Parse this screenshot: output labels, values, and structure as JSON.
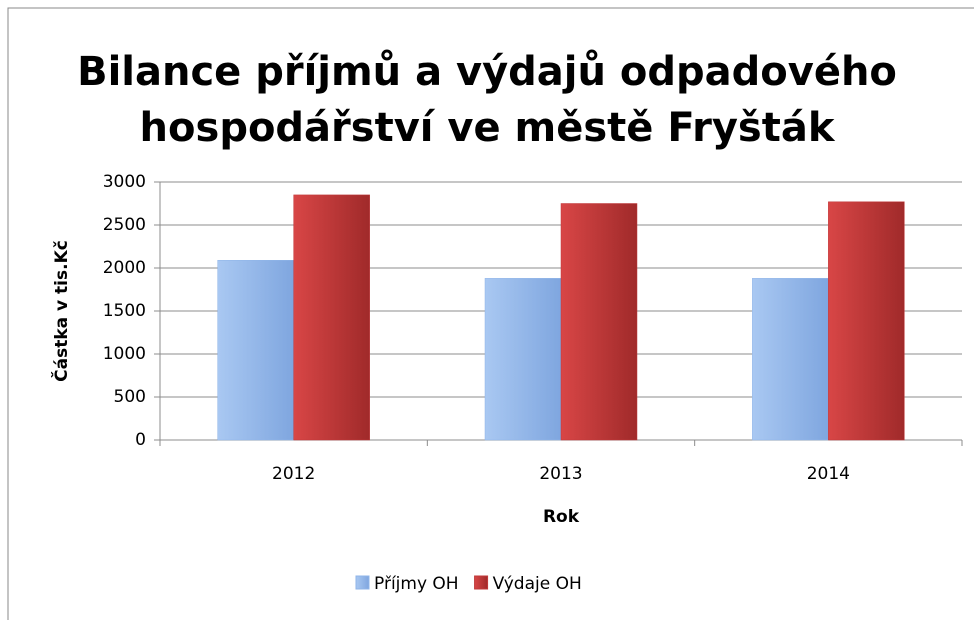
{
  "chart_data": {
    "type": "bar",
    "title": [
      "Bilance příjmů a výdajů odpadového",
      "hospodářství ve městě Fryšták"
    ],
    "y_label": "Částka v tis.Kč",
    "x_label": "Rok",
    "categories": [
      "2012",
      "2013",
      "2014"
    ],
    "series": [
      {
        "name": "Příjmy OH",
        "color": "#8fb4e8",
        "values": [
          2090,
          1880,
          1880
        ]
      },
      {
        "name": "Výdaje OH",
        "color": "#c0393a",
        "values": [
          2850,
          2750,
          2770
        ]
      }
    ],
    "ylim": [
      0,
      3000
    ],
    "yticks": [
      0,
      500,
      1000,
      1500,
      2000,
      2500,
      3000
    ],
    "grid": true,
    "legend": "bottom"
  }
}
